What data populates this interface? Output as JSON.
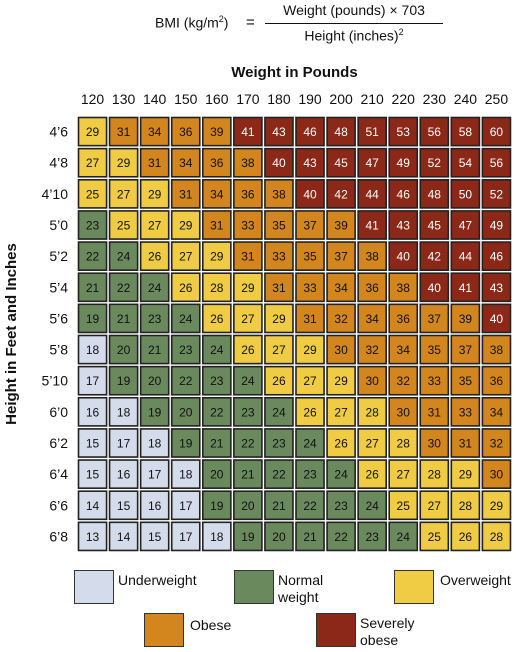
{
  "formula": {
    "lhs_prefix": "BMI (kg/m",
    "lhs_sup": "2",
    "lhs_suffix": ")",
    "equals": "=",
    "numerator": "Weight (pounds) × 703",
    "denominator_prefix": "Height (inches)",
    "denominator_sup": "2"
  },
  "colors": {
    "underweight": "#d4dcec",
    "normal": "#6a8a5e",
    "overweight": "#f0cc44",
    "obese": "#d4861e",
    "severely_obese": "#8c2818",
    "border": "#222222"
  },
  "chart_data": {
    "type": "heatmap",
    "title": "",
    "xlabel": "Weight in Pounds",
    "ylabel": "Height in Feet and Inches",
    "x": [
      "120",
      "130",
      "140",
      "150",
      "160",
      "170",
      "180",
      "190",
      "200",
      "210",
      "220",
      "230",
      "240",
      "250"
    ],
    "y": [
      "4’6",
      "4’8",
      "4’10",
      "5’0",
      "5’2",
      "5’4",
      "5’6",
      "5’8",
      "5’10",
      "6’0",
      "6’2",
      "6’4",
      "6’6",
      "6’8"
    ],
    "values": [
      [
        29,
        31,
        34,
        36,
        39,
        41,
        43,
        46,
        48,
        51,
        53,
        56,
        58,
        60
      ],
      [
        27,
        29,
        31,
        34,
        36,
        38,
        40,
        43,
        45,
        47,
        49,
        52,
        54,
        56
      ],
      [
        25,
        27,
        29,
        31,
        34,
        36,
        38,
        40,
        42,
        44,
        46,
        48,
        50,
        52
      ],
      [
        23,
        25,
        27,
        29,
        31,
        33,
        35,
        37,
        39,
        41,
        43,
        45,
        47,
        49
      ],
      [
        22,
        24,
        26,
        27,
        29,
        31,
        33,
        35,
        37,
        38,
        40,
        42,
        44,
        46
      ],
      [
        21,
        22,
        24,
        26,
        28,
        29,
        31,
        33,
        34,
        36,
        38,
        40,
        41,
        43
      ],
      [
        19,
        21,
        23,
        24,
        26,
        27,
        29,
        31,
        32,
        34,
        36,
        37,
        39,
        40
      ],
      [
        18,
        20,
        21,
        23,
        24,
        26,
        27,
        29,
        30,
        32,
        34,
        35,
        37,
        38
      ],
      [
        17,
        19,
        20,
        22,
        23,
        24,
        26,
        27,
        29,
        30,
        32,
        33,
        35,
        36
      ],
      [
        16,
        18,
        19,
        20,
        22,
        23,
        24,
        26,
        27,
        28,
        30,
        31,
        33,
        34
      ],
      [
        15,
        17,
        18,
        19,
        21,
        22,
        23,
        24,
        26,
        27,
        28,
        30,
        31,
        32
      ],
      [
        15,
        16,
        17,
        18,
        20,
        21,
        22,
        23,
        24,
        26,
        27,
        28,
        29,
        30
      ],
      [
        14,
        15,
        16,
        17,
        19,
        20,
        21,
        22,
        23,
        24,
        25,
        27,
        28,
        29
      ],
      [
        13,
        14,
        15,
        17,
        18,
        19,
        20,
        21,
        22,
        23,
        24,
        25,
        26,
        28
      ]
    ],
    "categories": [
      {
        "key": "underweight",
        "label": "Underweight",
        "max": 18
      },
      {
        "key": "normal",
        "label": "Normal weight",
        "max": 24
      },
      {
        "key": "overweight",
        "label": "Overweight",
        "max": 29
      },
      {
        "key": "obese",
        "label": "Obese",
        "max": 39
      },
      {
        "key": "severely_obese",
        "label": "Severely obese",
        "max": 999
      }
    ]
  },
  "legend": {
    "underweight": "Underweight",
    "normal_line1": "Normal",
    "normal_line2": "weight",
    "overweight": "Overweight",
    "obese": "Obese",
    "severely_line1": "Severely",
    "severely_line2": "obese"
  }
}
